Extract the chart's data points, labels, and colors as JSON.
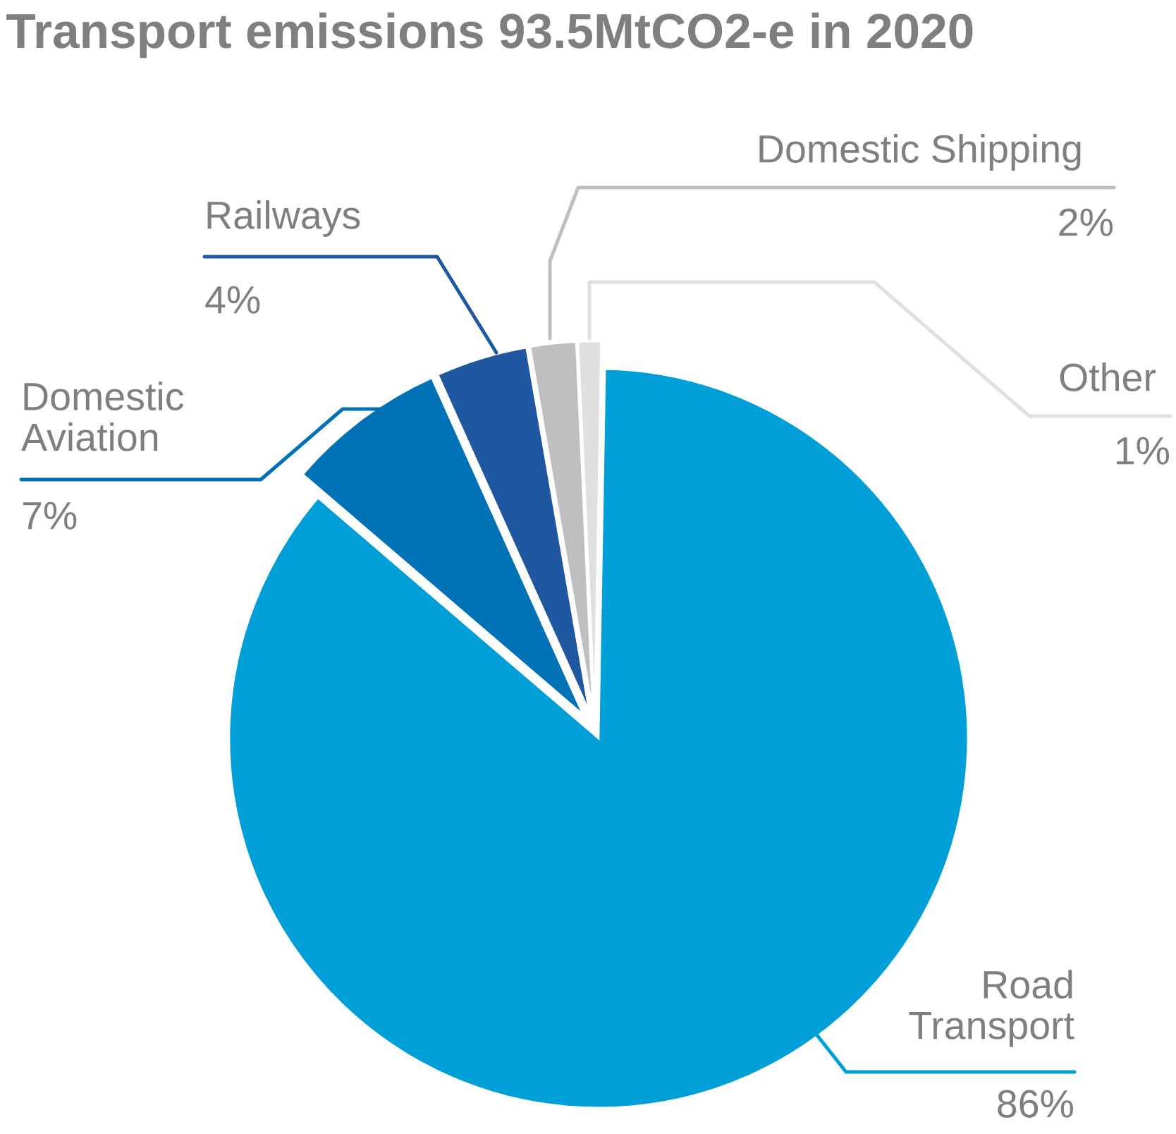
{
  "chart_data": {
    "type": "pie",
    "title": "Transport emissions 93.5MtCO2-e in 2020",
    "categories": [
      "Road\nTransport",
      "Domestic\nAviation",
      "Railways",
      "Domestic Shipping",
      "Other"
    ],
    "values": [
      86,
      7,
      4,
      2,
      1
    ],
    "value_labels": [
      "86%",
      "7%",
      "4%",
      "2%",
      "1%"
    ],
    "colors": [
      "#009fd8",
      "#0072b5",
      "#1f57a0",
      "#bfbfbf",
      "#e0e0e0"
    ],
    "legend": false
  }
}
